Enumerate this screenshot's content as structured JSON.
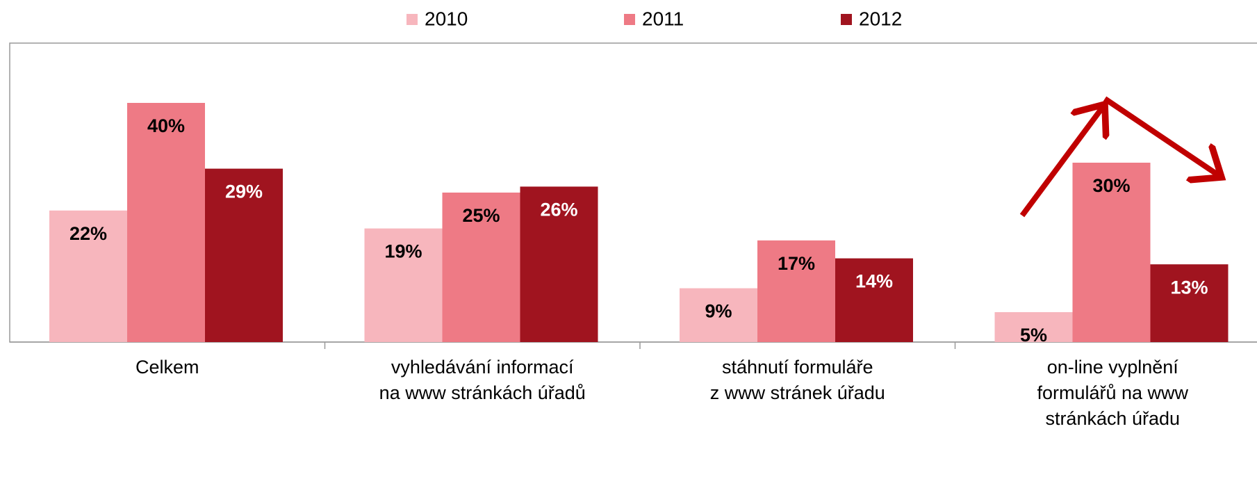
{
  "chart_data": {
    "type": "bar",
    "categories": [
      "Celkem",
      "vyhledávání informací\nna www stránkách úřadů",
      "stáhnutí formuláře\nz www stránek úřadu",
      "on-line vyplnění\nformulářů na www\nstránkách úřadu"
    ],
    "series": [
      {
        "name": "2010",
        "color": "#f7b6bd",
        "values": [
          22,
          19,
          9,
          5
        ],
        "value_labels": [
          "22%",
          "19%",
          "9%",
          "5%"
        ]
      },
      {
        "name": "2011",
        "color": "#ee7a85",
        "values": [
          40,
          25,
          17,
          30
        ],
        "value_labels": [
          "40%",
          "25%",
          "17%",
          "30%"
        ]
      },
      {
        "name": "2012",
        "color": "#a0141f",
        "values": [
          29,
          26,
          14,
          13
        ],
        "value_labels": [
          "29%",
          "26%",
          "14%",
          "13%"
        ]
      }
    ],
    "ylim": [
      0,
      50
    ]
  }
}
